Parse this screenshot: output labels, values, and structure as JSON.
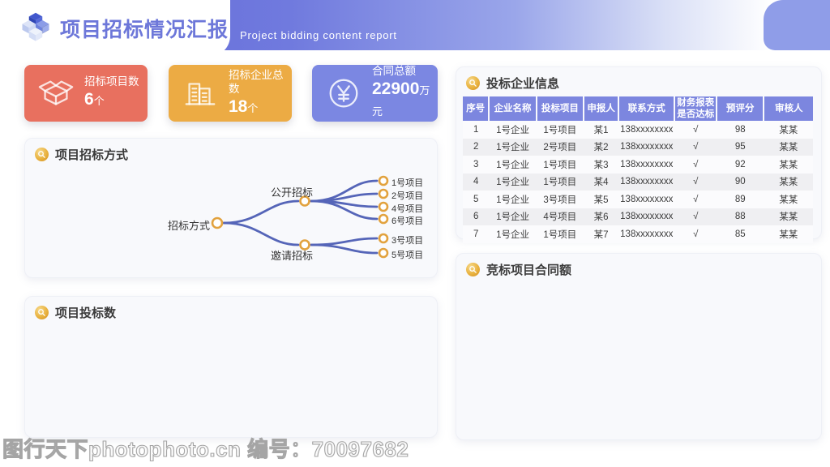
{
  "header": {
    "title": "项目招标情况汇报",
    "subtitle": "Project bidding content report",
    "logo_icon": "isometric-cubes-logo"
  },
  "stats": [
    {
      "label": "招标项目数",
      "value": "6",
      "unit": "个",
      "icon": "open-box-icon"
    },
    {
      "label": "招标企业总数",
      "value": "18",
      "unit": "个",
      "icon": "buildings-icon"
    },
    {
      "label": "合同总额",
      "value": "22900",
      "unit": "万元",
      "icon": "yuan-coin-icon"
    }
  ],
  "panels": {
    "bidding_method": {
      "title": "项目招标方式",
      "icon": "magnifier-icon"
    },
    "bid_count": {
      "title": "项目投标数",
      "icon": "magnifier-icon"
    },
    "company_info": {
      "title": "投标企业信息",
      "icon": "magnifier-icon"
    },
    "contract_amount": {
      "title": "竞标项目合同额",
      "icon": "magnifier-icon"
    }
  },
  "mindmap": {
    "root": "招标方式",
    "branches": [
      {
        "label": "公开招标",
        "children": [
          "1号项目",
          "2号项目",
          "4号项目",
          "6号项目"
        ]
      },
      {
        "label": "邀请招标",
        "children": [
          "3号项目",
          "5号项目"
        ]
      }
    ]
  },
  "table": {
    "columns": [
      "序号",
      "企业名称",
      "投标项目",
      "申报人",
      "联系方式",
      "财务报表\n是否达标",
      "预评分",
      "审核人"
    ],
    "rows": [
      [
        "1",
        "1号企业",
        "1号项目",
        "某1",
        "138xxxxxxxx",
        "√",
        "98",
        "某某"
      ],
      [
        "2",
        "1号企业",
        "2号项目",
        "某2",
        "138xxxxxxxx",
        "√",
        "95",
        "某某"
      ],
      [
        "3",
        "1号企业",
        "1号项目",
        "某3",
        "138xxxxxxxx",
        "√",
        "92",
        "某某"
      ],
      [
        "4",
        "1号企业",
        "1号项目",
        "某4",
        "138xxxxxxxx",
        "√",
        "90",
        "某某"
      ],
      [
        "5",
        "1号企业",
        "3号项目",
        "某5",
        "138xxxxxxxx",
        "√",
        "89",
        "某某"
      ],
      [
        "6",
        "1号企业",
        "4号项目",
        "某6",
        "138xxxxxxxx",
        "√",
        "88",
        "某某"
      ],
      [
        "7",
        "1号企业",
        "1号项目",
        "某7",
        "138xxxxxxxx",
        "√",
        "85",
        "某某"
      ]
    ]
  },
  "watermark": "图行天下photophoto.cn 编号：70097682",
  "colors": {
    "band_purple": "#6065d6",
    "corner_blue": "#8f9de8",
    "title_purple": "#6d77d9",
    "card_red": "#e8705f",
    "card_orange": "#ecab44",
    "card_purple": "#7b87e2",
    "table_header": "#7c86df",
    "mindmap_line": "#5565b8",
    "node_ring": "#e2a23e"
  }
}
